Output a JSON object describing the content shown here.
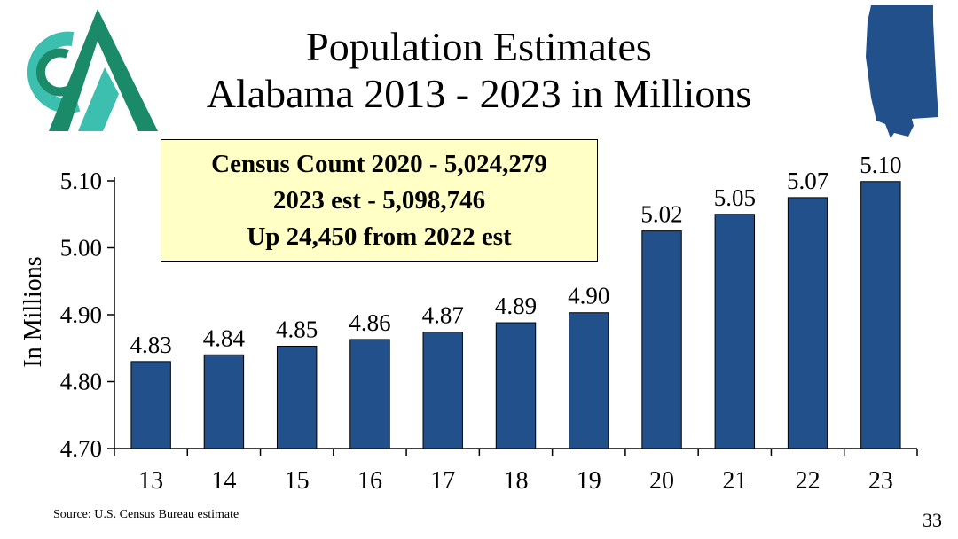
{
  "title": {
    "line1": "Population Estimates",
    "line2": "Alabama 2013 - 2023 in Millions"
  },
  "logo": {
    "icon": "cm-logo-icon",
    "colors": {
      "teal": "#3cbfae",
      "green": "#1a8a68"
    }
  },
  "state_icon": {
    "icon": "alabama-map-icon",
    "color": "#22508a"
  },
  "callout": {
    "line1": "Census Count 2020 - 5,024,279",
    "line2": "2023 est -  5,098,746",
    "line3": "Up 24,450 from 2022 est"
  },
  "chart_data": {
    "type": "bar",
    "title": "Population Estimates Alabama 2013 - 2023 in Millions",
    "xlabel": "",
    "ylabel": "In Millions",
    "categories": [
      "13",
      "14",
      "15",
      "16",
      "17",
      "18",
      "19",
      "20",
      "21",
      "22",
      "23"
    ],
    "values": [
      4.83,
      4.84,
      4.853,
      4.863,
      4.874,
      4.888,
      4.903,
      5.025,
      5.05,
      5.075,
      5.099
    ],
    "data_labels": [
      "4.83",
      "4.84",
      "4.85",
      "4.86",
      "4.87",
      "4.89",
      "4.90",
      "5.02",
      "5.05",
      "5.07",
      "5.10"
    ],
    "ylim": [
      4.7,
      5.1
    ],
    "yticks": [
      4.7,
      4.8,
      4.9,
      5.0,
      5.1
    ],
    "ytick_labels": [
      "4.70",
      "4.80",
      "4.90",
      "5.00",
      "5.10"
    ],
    "grid": false,
    "bar_color": "#22508a"
  },
  "source": {
    "prefix": "Source: ",
    "link": "U.S. Census Bureau estimate"
  },
  "page_number": "33"
}
